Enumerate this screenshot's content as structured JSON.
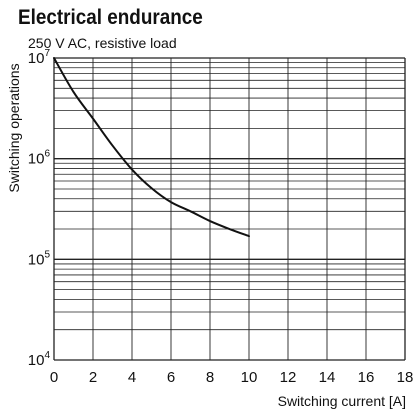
{
  "chart_data": {
    "type": "line",
    "title": "Electrical endurance",
    "subtitle": "250 V AC, resistive load",
    "xlabel": "Switching current [A]",
    "ylabel": "Switching operations",
    "xlim": [
      0,
      18
    ],
    "ylim": [
      10000,
      10000000
    ],
    "y_scale": "log",
    "x_ticks": [
      0,
      2,
      4,
      6,
      8,
      10,
      12,
      14,
      16,
      18
    ],
    "y_ticks": [
      {
        "base": "10",
        "exp": "4"
      },
      {
        "base": "10",
        "exp": "5"
      },
      {
        "base": "10",
        "exp": "6"
      },
      {
        "base": "10",
        "exp": "7"
      }
    ],
    "grid": true,
    "series": [
      {
        "x": [
          0,
          1,
          2,
          3,
          4,
          5,
          6,
          7,
          8,
          9,
          10
        ],
        "y": [
          10000000,
          4600000,
          2500000,
          1350000,
          780000,
          510000,
          370000,
          300000,
          240000,
          200000,
          170000
        ]
      }
    ],
    "colors": {
      "curve": "#111111",
      "grid": "#222222",
      "text": "#111111"
    }
  }
}
